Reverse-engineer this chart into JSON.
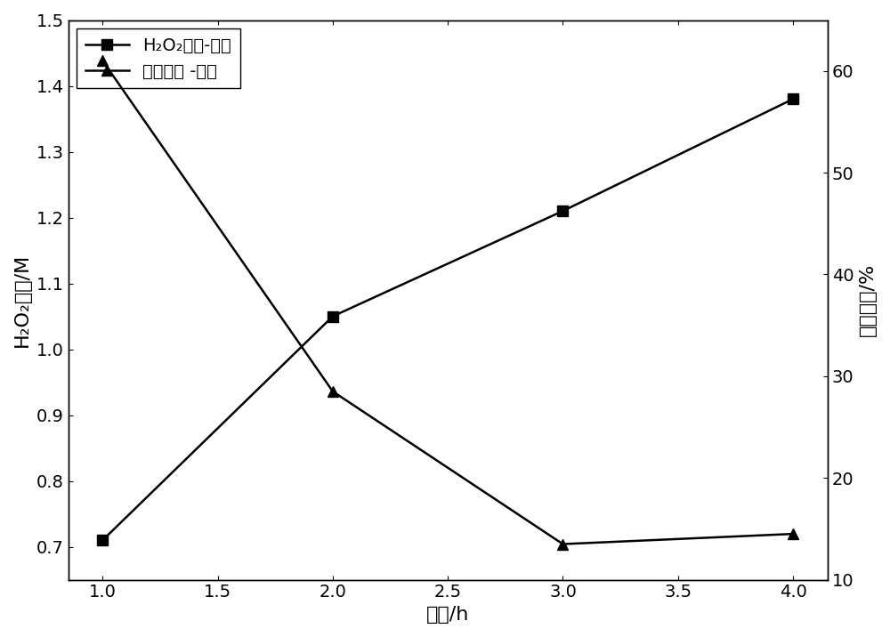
{
  "time": [
    1,
    2,
    3,
    4
  ],
  "h2o2_conc": [
    0.71,
    1.05,
    1.21,
    1.38
  ],
  "current_eff": [
    61.0,
    28.5,
    13.5,
    14.5
  ],
  "left_ylim": [
    0.65,
    1.5
  ],
  "right_ylim": [
    10,
    65
  ],
  "left_yticks": [
    0.7,
    0.8,
    0.9,
    1.0,
    1.1,
    1.2,
    1.3,
    1.4,
    1.5
  ],
  "right_yticks": [
    10,
    20,
    30,
    40,
    50,
    60
  ],
  "xticks": [
    1.0,
    1.5,
    2.0,
    2.5,
    3.0,
    3.5,
    4.0
  ],
  "xlim": [
    0.85,
    4.15
  ],
  "xlabel": "时间/h",
  "left_ylabel": "H₂O₂浓度/M",
  "right_ylabel": "电流效率/%",
  "legend_label1": "H₂O₂浓度-时间",
  "legend_label2": "电流效率 -时间",
  "line_color": "#000000",
  "marker_square": "s",
  "marker_triangle": "^",
  "marker_size": 9,
  "linewidth": 1.8,
  "figsize": [
    10.0,
    7.16
  ],
  "dpi": 100
}
